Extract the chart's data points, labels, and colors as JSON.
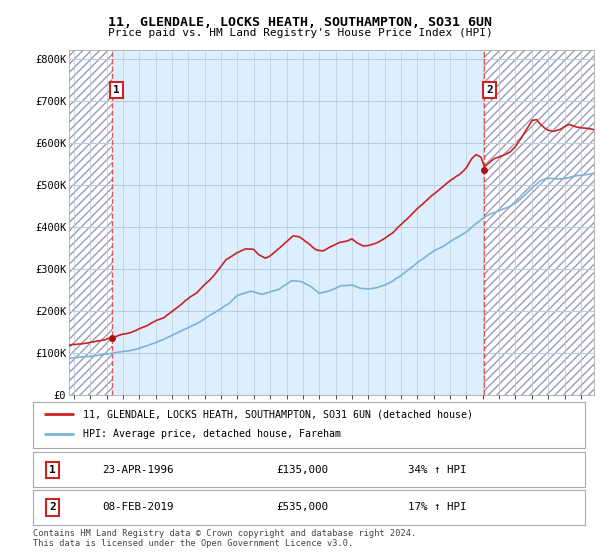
{
  "title": "11, GLENDALE, LOCKS HEATH, SOUTHAMPTON, SO31 6UN",
  "subtitle": "Price paid vs. HM Land Registry's House Price Index (HPI)",
  "legend_line1": "11, GLENDALE, LOCKS HEATH, SOUTHAMPTON, SO31 6UN (detached house)",
  "legend_line2": "HPI: Average price, detached house, Fareham",
  "annotation1_label": "1",
  "annotation1_date": "23-APR-1996",
  "annotation1_price": "£135,000",
  "annotation1_hpi": "34% ↑ HPI",
  "annotation2_label": "2",
  "annotation2_date": "08-FEB-2019",
  "annotation2_price": "£535,000",
  "annotation2_hpi": "17% ↑ HPI",
  "footer": "Contains HM Land Registry data © Crown copyright and database right 2024.\nThis data is licensed under the Open Government Licence v3.0.",
  "sale1_year": 1996.31,
  "sale1_price": 135000,
  "sale2_year": 2019.1,
  "sale2_price": 535000,
  "hpi_color": "#7ab4d8",
  "price_color": "#cc2222",
  "sale_marker_color": "#aa1111",
  "background_color": "#ffffff",
  "plot_bg_color": "#ddeeff",
  "grid_color": "#bbccdd",
  "ylim": [
    0,
    820000
  ],
  "xlim_start": 1993.7,
  "xlim_end": 2025.8,
  "yticks": [
    0,
    100000,
    200000,
    300000,
    400000,
    500000,
    600000,
    700000,
    800000
  ],
  "ytick_labels": [
    "£0",
    "£100K",
    "£200K",
    "£300K",
    "£400K",
    "£500K",
    "£600K",
    "£700K",
    "£800K"
  ]
}
